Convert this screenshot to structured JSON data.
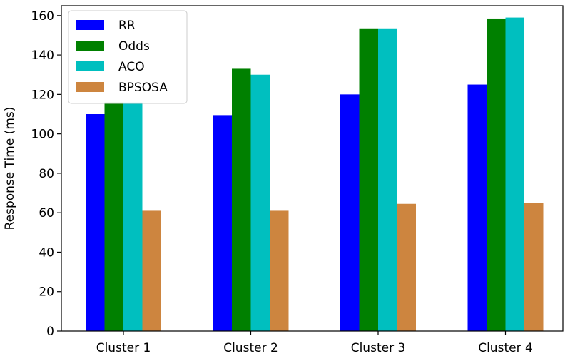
{
  "chart_data": {
    "type": "bar",
    "title": "",
    "xlabel": "",
    "ylabel": "Response Time (ms)",
    "ylim": [
      0,
      165
    ],
    "yticks": [
      0,
      20,
      40,
      60,
      80,
      100,
      120,
      140,
      160
    ],
    "categories": [
      "Cluster 1",
      "Cluster 2",
      "Cluster 3",
      "Cluster 4"
    ],
    "series": [
      {
        "name": "RR",
        "color": "#0000ff",
        "values": [
          110,
          109.5,
          120,
          125
        ]
      },
      {
        "name": "Odds",
        "color": "#008000",
        "values": [
          116,
          133,
          153.5,
          158.5
        ]
      },
      {
        "name": "ACO",
        "color": "#00bfbf",
        "values": [
          116,
          130,
          153.5,
          159
        ]
      },
      {
        "name": "BPSOSA",
        "color": "#cd853f",
        "values": [
          61,
          61,
          64.5,
          65
        ]
      }
    ],
    "legend_position": "top-left",
    "grid": false
  }
}
